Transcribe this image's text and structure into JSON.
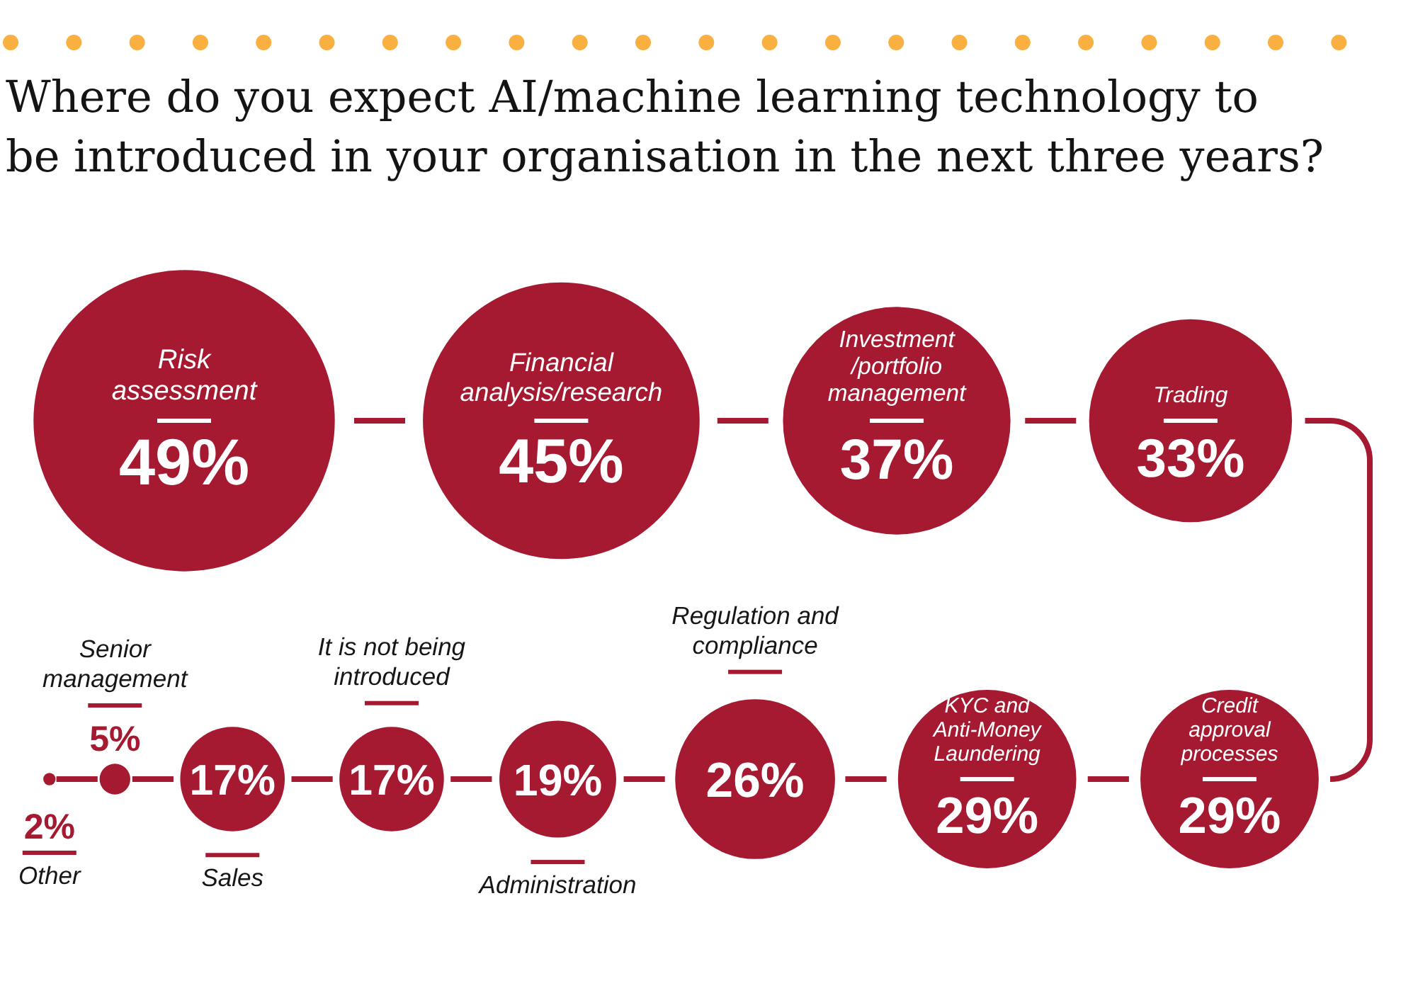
{
  "chart_data": {
    "type": "other",
    "title": "Where do you expect AI/machine learning technology to be introduced in your organisation in the next three years?",
    "categories": [
      "Risk assessment",
      "Financial analysis/research",
      "Investment /portfolio management",
      "Trading",
      "Credit approval processes",
      "KYC and Anti-Money Laundering",
      "Regulation and compliance",
      "Administration",
      "It is not being introduced",
      "Sales",
      "Senior management",
      "Other"
    ],
    "values": [
      49,
      45,
      37,
      33,
      29,
      29,
      26,
      19,
      17,
      17,
      5,
      2
    ],
    "value_labels": [
      "49%",
      "45%",
      "37%",
      "33%",
      "29%",
      "29%",
      "26%",
      "19%",
      "17%",
      "17%",
      "5%",
      "2%"
    ],
    "color": "#a51931"
  }
}
